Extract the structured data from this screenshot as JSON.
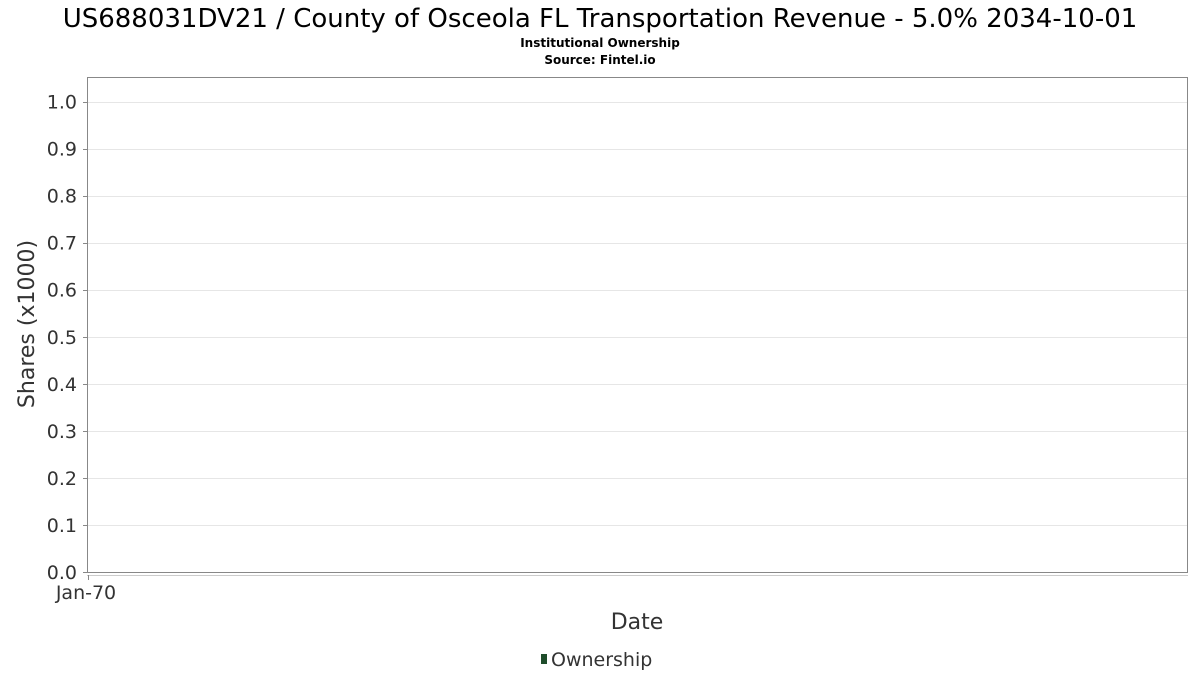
{
  "chart_data": {
    "type": "line",
    "title": "US688031DV21 / County of Osceola FL Transportation Revenue - 5.0% 2034-10-01",
    "subtitle": "Institutional Ownership",
    "source": "Source: Fintel.io",
    "xlabel": "Date",
    "ylabel": "Shares (x1000)",
    "x_ticks": [
      "Jan-70"
    ],
    "y_ticks": [
      "0.0",
      "0.1",
      "0.2",
      "0.3",
      "0.4",
      "0.5",
      "0.6",
      "0.7",
      "0.8",
      "0.9",
      "1.0"
    ],
    "ylim": [
      0,
      1.05
    ],
    "grid": true,
    "legend_position": "bottom",
    "series": [
      {
        "name": "Ownership",
        "color": "#1f4d2b",
        "x": [],
        "values": []
      }
    ]
  }
}
